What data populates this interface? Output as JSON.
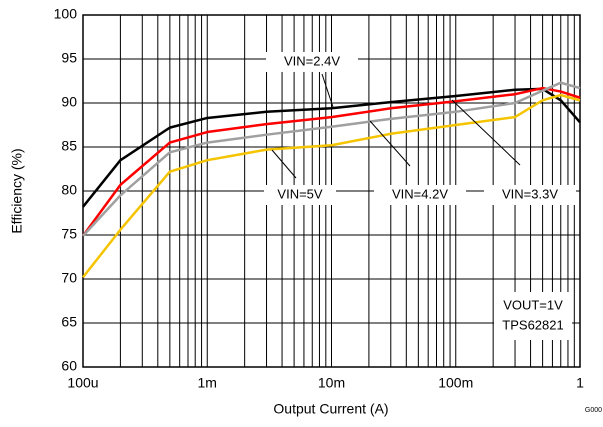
{
  "chart_data": {
    "type": "line",
    "xlabel": "Output Current (A)",
    "ylabel": "Efficiency (%)",
    "xscale": "log",
    "x": [
      0.0001,
      0.0002,
      0.0005,
      0.001,
      0.003,
      0.01,
      0.03,
      0.1,
      0.3,
      0.5,
      0.7,
      1
    ],
    "series": [
      {
        "name": "VIN=2.4V",
        "color": "#000000",
        "values": [
          78.2,
          83.5,
          87.2,
          88.3,
          89.0,
          89.4,
          90.1,
          90.8,
          91.5,
          91.6,
          90.3,
          87.8
        ]
      },
      {
        "name": "VIN=3.3V",
        "color": "#ff0000",
        "values": [
          74.9,
          80.7,
          85.5,
          86.7,
          87.6,
          88.4,
          89.4,
          90.2,
          91.0,
          91.7,
          91.3,
          90.6
        ]
      },
      {
        "name": "VIN=4.2V",
        "color": "#a0a0a0",
        "values": [
          74.9,
          79.5,
          84.4,
          85.5,
          86.4,
          87.3,
          88.2,
          89.0,
          90.0,
          91.4,
          92.3,
          91.7
        ]
      },
      {
        "name": "VIN=5V",
        "color": "#f5c400",
        "values": [
          70.2,
          75.6,
          82.2,
          83.5,
          84.7,
          85.2,
          86.5,
          87.5,
          88.4,
          90.3,
          90.9,
          90.3
        ]
      }
    ],
    "xlim": [
      0.0001,
      1
    ],
    "xticks": [
      {
        "value": 0.0001,
        "label": "100u"
      },
      {
        "value": 0.001,
        "label": "1m"
      },
      {
        "value": 0.01,
        "label": "10m"
      },
      {
        "value": 0.1,
        "label": "100m"
      },
      1
    ],
    "ylim": [
      60,
      100
    ],
    "yticks": [
      60,
      65,
      70,
      75,
      80,
      85,
      90,
      95,
      100
    ],
    "grid": true,
    "annotations": [
      "VOUT=1V",
      "TPS62821"
    ],
    "footnote": "G000"
  }
}
